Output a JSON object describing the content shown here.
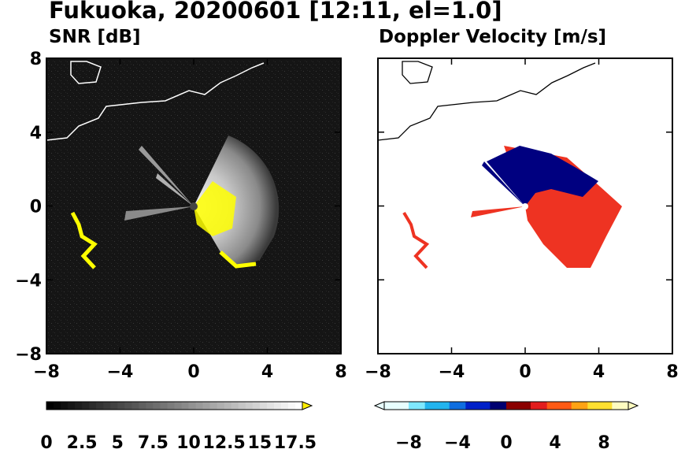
{
  "figure": {
    "title": "Fukuoka, 20200601 [12:11, el=1.0]"
  },
  "chart_data": [
    {
      "type": "heatmap",
      "title": "SNR [dB]",
      "xlim": [
        -8,
        8
      ],
      "ylim": [
        -8,
        8
      ],
      "x_ticks": [
        "−8",
        "−4",
        "0",
        "4",
        "8"
      ],
      "y_ticks": [
        "8",
        "4",
        "0",
        "−4",
        "−8"
      ],
      "background": "#111111",
      "coastline_color": "#ffffff",
      "colorbar": {
        "range": [
          0,
          18
        ],
        "ticks": [
          "0",
          "2.5",
          "5",
          "7.5",
          "10",
          "12.5",
          "15",
          "17.5"
        ],
        "extend": "max",
        "extend_color": "#ffee00",
        "colors": [
          "#000000",
          "#ffffff"
        ]
      },
      "echo_region": {
        "center": [
          0,
          0
        ],
        "sector_deg": [
          -60,
          55
        ],
        "max_range_km": 4.3,
        "peak_value_db": 13
      },
      "highlight_color": "#ffff00"
    },
    {
      "type": "heatmap",
      "title": "Doppler Velocity [m/s]",
      "xlim": [
        -8,
        8
      ],
      "ylim": [
        -8,
        8
      ],
      "x_ticks": [
        "−8",
        "−4",
        "0",
        "4",
        "8"
      ],
      "y_ticks": [],
      "background": "#ffffff",
      "coastline_color": "#000000",
      "colorbar": {
        "range": [
          -10,
          10
        ],
        "ticks": [
          "−8",
          "−4",
          "0",
          "4",
          "8"
        ],
        "extend": "both",
        "colors_negative": [
          "#e8ffff",
          "#7fe8ff",
          "#23b4ee",
          "#0f6ee0",
          "#0020c8",
          "#000070"
        ],
        "colors_positive": [
          "#8a0000",
          "#e21d1d",
          "#ff5a14",
          "#ffa314",
          "#ffe030",
          "#fffcc0"
        ]
      },
      "echo_region": {
        "center": [
          0,
          0
        ],
        "receding_color": "#ee3322",
        "approaching_color": "#000080"
      }
    }
  ]
}
